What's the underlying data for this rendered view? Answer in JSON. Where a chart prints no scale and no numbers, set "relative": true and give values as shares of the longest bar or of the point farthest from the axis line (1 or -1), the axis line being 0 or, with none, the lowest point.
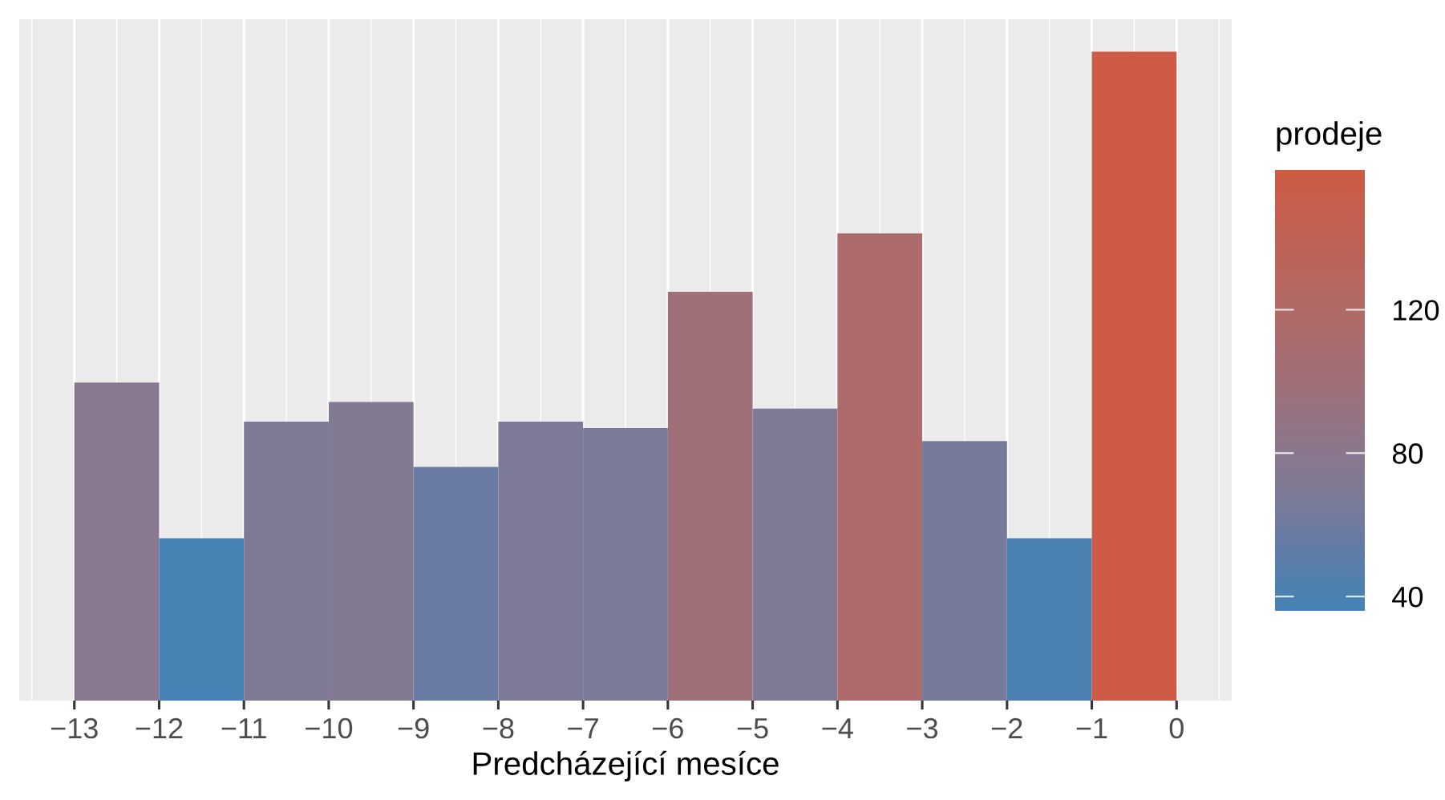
{
  "chart_data": {
    "type": "bar",
    "xlabel": "Predcházející mesíce",
    "clabel": "prodeje",
    "x": [
      -12.5,
      -11.5,
      -10.5,
      -9.5,
      -8.5,
      -7.5,
      -6.5,
      -5.5,
      -4.5,
      -3.5,
      -2.5,
      -1.5,
      -0.5
    ],
    "values": [
      0.49,
      0.25,
      0.43,
      0.46,
      0.36,
      0.43,
      0.42,
      0.63,
      0.45,
      0.72,
      0.4,
      0.25,
      1
    ],
    "relative": true,
    "cvalues": [
      78,
      39,
      69,
      73,
      57,
      68,
      67,
      100,
      71,
      115,
      64,
      40,
      159
    ],
    "colors": [
      "#897890",
      "#4682b4",
      "#7e7a96",
      "#837992",
      "#6a7ba3",
      "#7d7a97",
      "#7b7a98",
      "#a07078",
      "#807a94",
      "#ad6c6b",
      "#777b9b",
      "#4a81b1",
      "#cd5b45"
    ],
    "xlim": [
      -13.65,
      0.65
    ],
    "xticks": [
      {
        "value": -13,
        "label": "−13"
      },
      {
        "value": -12,
        "label": "−12"
      },
      {
        "value": -11,
        "label": "−11"
      },
      {
        "value": -10,
        "label": "−10"
      },
      {
        "value": -9,
        "label": "−9"
      },
      {
        "value": -8,
        "label": "−8"
      },
      {
        "value": -7,
        "label": "−7"
      },
      {
        "value": -6,
        "label": "−6"
      },
      {
        "value": -5,
        "label": "−5"
      },
      {
        "value": -4,
        "label": "−4"
      },
      {
        "value": -3,
        "label": "−3"
      },
      {
        "value": -2,
        "label": "−2"
      },
      {
        "value": -1,
        "label": "−1"
      },
      {
        "value": 0,
        "label": "0"
      }
    ],
    "tick_labels": "x",
    "grid": "x",
    "clim": [
      36,
      159
    ],
    "cticks": [
      40,
      80,
      120
    ]
  }
}
